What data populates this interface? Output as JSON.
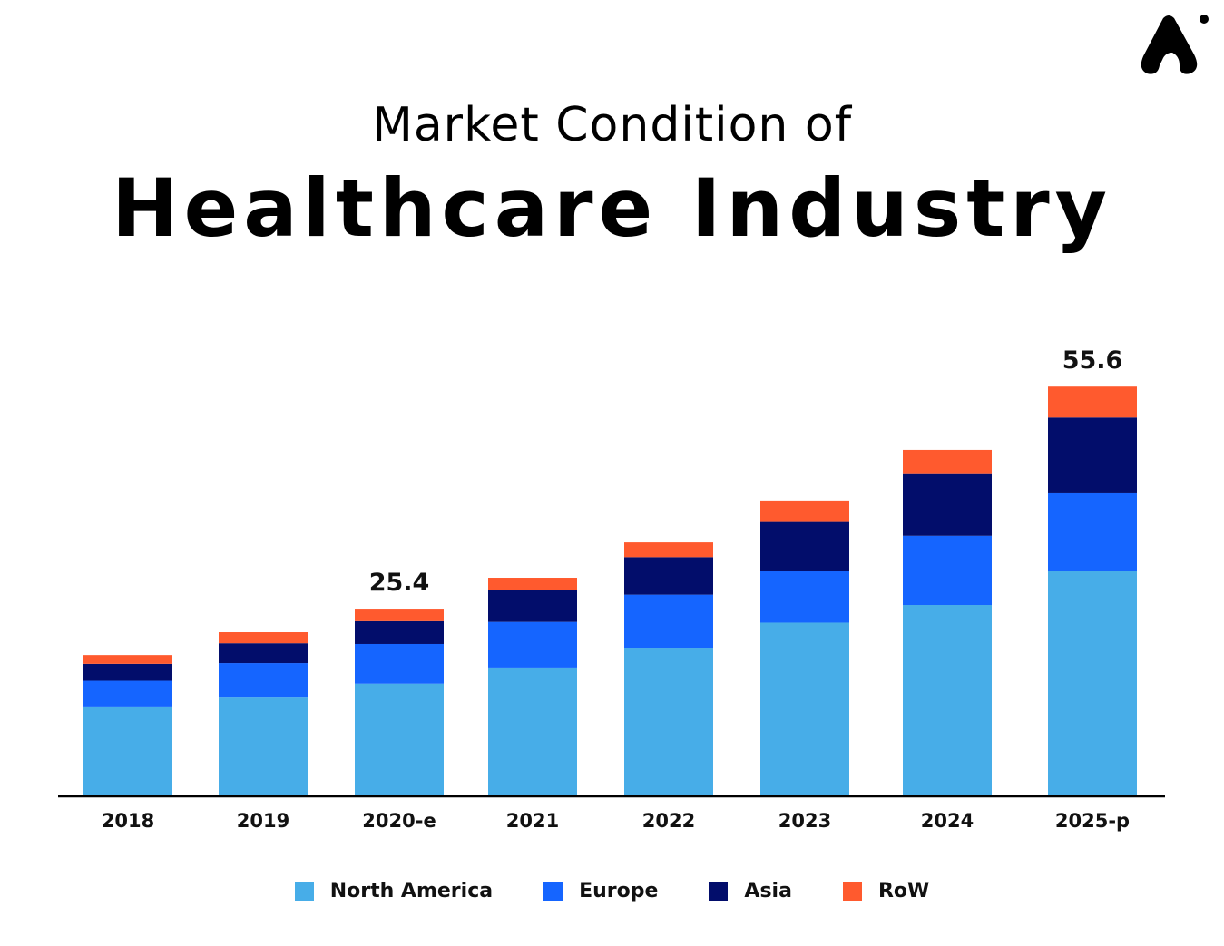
{
  "header": {
    "subtitle": "Market Condition of",
    "title": "Healthcare Industry"
  },
  "chart_data": {
    "type": "bar",
    "stacked": true,
    "title": "Healthcare Industry",
    "subtitle": "Market Condition of",
    "categories": [
      "2018",
      "2019",
      "2020-e",
      "2021",
      "2022",
      "2023",
      "2024",
      "2025-p"
    ],
    "series": [
      {
        "name": "North America",
        "color": "#47ADE8",
        "values": [
          12.1,
          13.3,
          15.2,
          17.4,
          20.1,
          23.5,
          25.9,
          30.5
        ]
      },
      {
        "name": "Europe",
        "color": "#1565FF",
        "values": [
          3.5,
          4.7,
          5.4,
          6.2,
          7.2,
          7.0,
          9.4,
          10.7
        ]
      },
      {
        "name": "Asia",
        "color": "#020D6B",
        "values": [
          2.3,
          2.7,
          3.1,
          4.3,
          5.1,
          6.8,
          8.4,
          10.2
        ]
      },
      {
        "name": "RoW",
        "color": "#FF5A2E",
        "values": [
          1.2,
          1.5,
          1.7,
          1.7,
          2.0,
          2.8,
          3.3,
          4.2
        ]
      }
    ],
    "data_labels": [
      {
        "category": "2020-e",
        "text": "25.4"
      },
      {
        "category": "2025-p",
        "text": "55.6"
      }
    ],
    "ylim": [
      0,
      57.6
    ],
    "grid": false,
    "legend_position": "bottom"
  }
}
